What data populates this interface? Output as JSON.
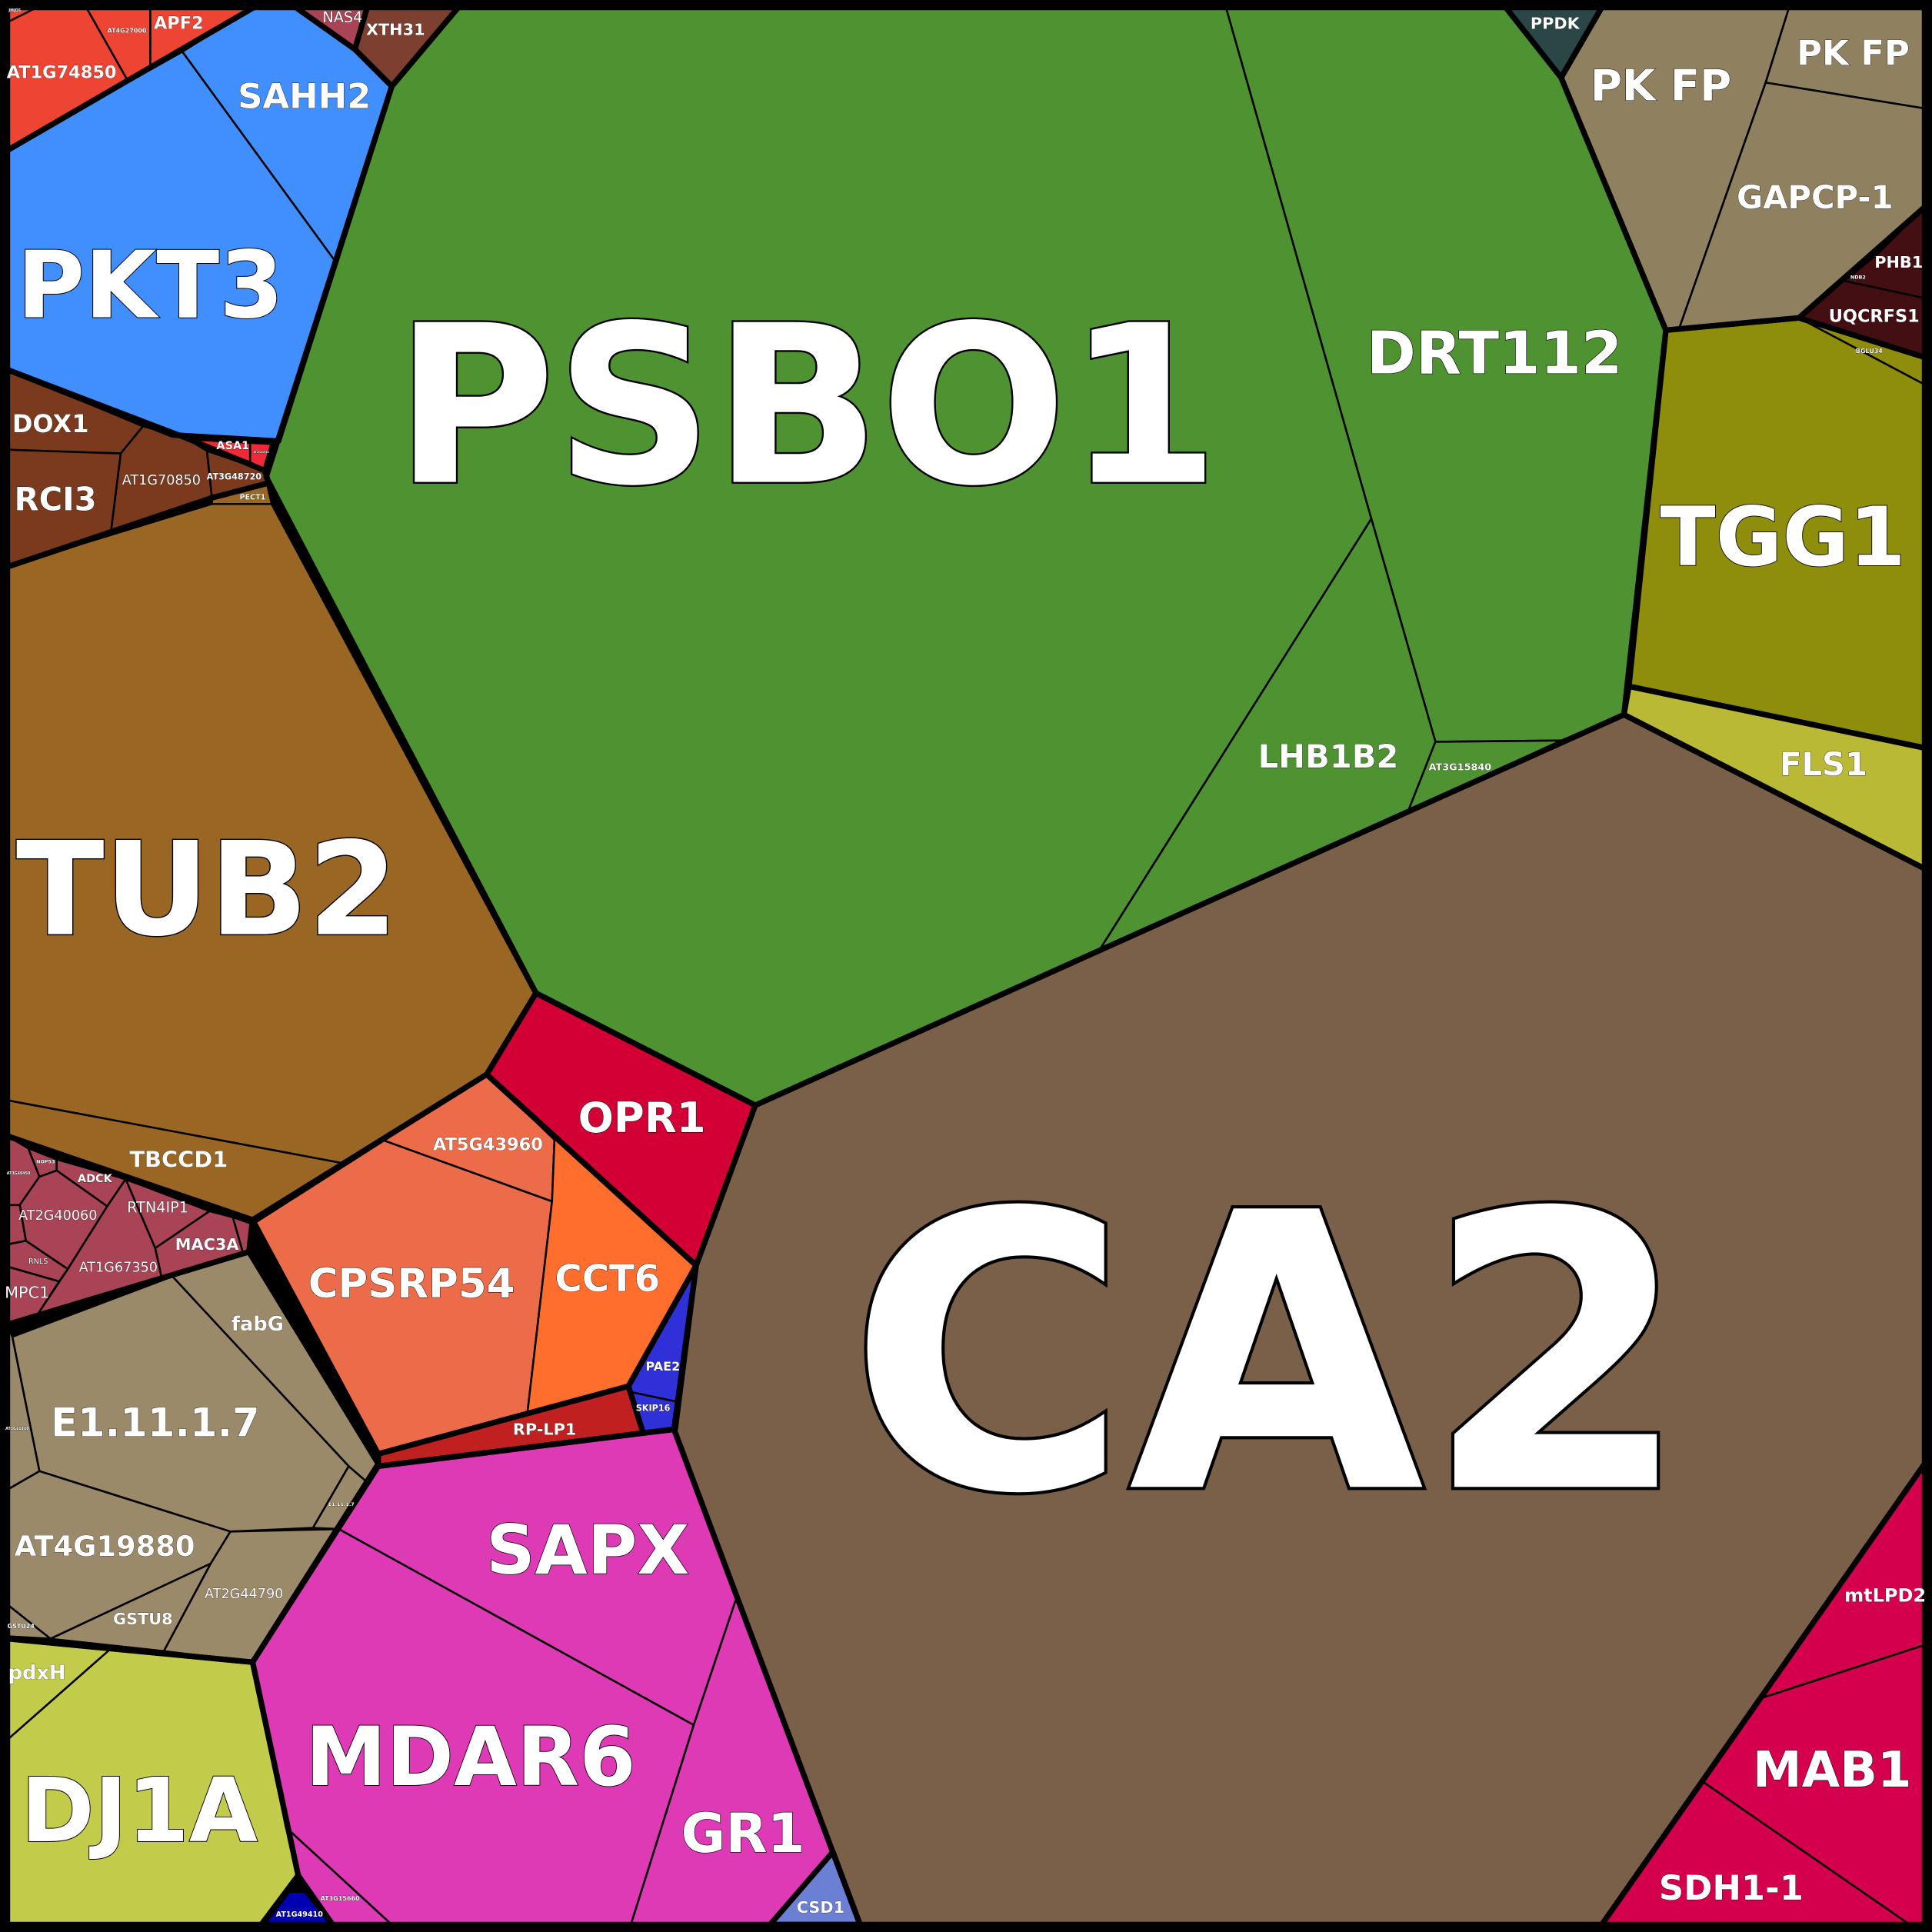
{
  "cells": {
    "psbo1": {
      "label": "PSBO1",
      "color": "#4f9232"
    },
    "drt112": {
      "label": "DRT112",
      "color": "#4f9232"
    },
    "lhb1b2": {
      "label": "LHB1B2",
      "color": "#4f9232"
    },
    "at3g15840": {
      "label": "AT3G15840",
      "color": "#4f9232"
    },
    "ca2": {
      "label": "CA2",
      "color": "#7b6049"
    },
    "mtlpd2": {
      "label": "mtLPD2",
      "color": "#d4004e"
    },
    "mab1": {
      "label": "MAB1",
      "color": "#d4004e"
    },
    "sdh1": {
      "label": "SDH1-1",
      "color": "#d4004e"
    },
    "ppdk": {
      "label": "PPDK",
      "color": "#2b4646"
    },
    "pkfp1": {
      "label": "PK FP",
      "color": "#8f8160"
    },
    "pkfp2": {
      "label": "PK FP",
      "color": "#8f8160"
    },
    "gapcp1": {
      "label": "GAPCP-1",
      "color": "#8f8160"
    },
    "phb1": {
      "label": "PHB1",
      "color": "#430f12"
    },
    "ndb2": {
      "label": "NDB2",
      "color": "#430f12"
    },
    "uqcrfs1": {
      "label": "UQCRFS1",
      "color": "#430f12"
    },
    "tgg1": {
      "label": "TGG1",
      "color": "#8e8e0c"
    },
    "bglu34": {
      "label": "BGLU34",
      "color": "#8e8e0c"
    },
    "fls1": {
      "label": "FLS1",
      "color": "#b9b935"
    },
    "jmjd5": {
      "label": "JMJD5",
      "color": "#ee4433"
    },
    "at1g74850": {
      "label": "AT1G74850",
      "color": "#ee4433"
    },
    "at4g27000": {
      "label": "AT4G27000",
      "color": "#ee4433"
    },
    "apf2": {
      "label": "APF2",
      "color": "#ee4433"
    },
    "sahh2": {
      "label": "SAHH2",
      "color": "#418fff"
    },
    "pkt3": {
      "label": "PKT3",
      "color": "#418fff"
    },
    "nas4": {
      "label": "NAS4",
      "color": "#a84455"
    },
    "xth31": {
      "label": "XTH31",
      "color": "#7d4030"
    },
    "asa1": {
      "label": "ASA1",
      "color": "#ef2a38"
    },
    "asa_small": {
      "label": "AT2G41040",
      "color": "#ef2a38"
    },
    "dox1": {
      "label": "DOX1",
      "color": "#7b3a1e"
    },
    "rci3": {
      "label": "RCI3",
      "color": "#7b3a1e"
    },
    "at1g70850": {
      "label": "AT1G70850",
      "color": "#7b3a1e"
    },
    "at3g48720": {
      "label": "AT3G48720",
      "color": "#7b3a1e"
    },
    "pect1": {
      "label": "PECT1",
      "color": "#9a6623"
    },
    "tub2": {
      "label": "TUB2",
      "color": "#9a6623"
    },
    "tbccd1": {
      "label": "TBCCD1",
      "color": "#9a6623"
    },
    "at3g60450": {
      "label": "AT3G60450",
      "color": "#a84455"
    },
    "nop53": {
      "label": "NOP53",
      "color": "#a84455"
    },
    "adck": {
      "label": "ADCK",
      "color": "#a84455"
    },
    "at2g40060": {
      "label": "AT2G40060",
      "color": "#a84455"
    },
    "at1g67350": {
      "label": "AT1G67350",
      "color": "#a84455"
    },
    "rtn4ip1": {
      "label": "RTN4IP1",
      "color": "#a84455"
    },
    "mac3a": {
      "label": "MAC3A",
      "color": "#a84455"
    },
    "mauve_small": {
      "label": "",
      "color": "#a84455"
    },
    "rnls": {
      "label": "RNLS",
      "color": "#a84455"
    },
    "mpc1": {
      "label": "MPC1",
      "color": "#a84455"
    },
    "mauve_left": {
      "label": "",
      "color": "#a84455"
    },
    "fabg": {
      "label": "fabG",
      "color": "#9b8a6a"
    },
    "e11117": {
      "label": "E1.11.1.7",
      "color": "#9b8a6a"
    },
    "e11117_small": {
      "label": "E1.11.1.7",
      "color": "#9b8a6a"
    },
    "tan_left": {
      "label": "AT3G11110",
      "color": "#9b8a6a"
    },
    "at4g19880": {
      "label": "AT4G19880",
      "color": "#9b8a6a"
    },
    "gstu24": {
      "label": "GSTU24",
      "color": "#9b8a6a"
    },
    "gstu8": {
      "label": "GSTU8",
      "color": "#9b8a6a"
    },
    "at2g44790": {
      "label": "AT2G44790",
      "color": "#9b8a6a"
    },
    "pdxh": {
      "label": "pdxH",
      "color": "#c3cb4b"
    },
    "dj1a": {
      "label": "DJ1A",
      "color": "#c3cb4b"
    },
    "at1g49410": {
      "label": "AT1G49410",
      "color": "#0000b0"
    },
    "at3g15660": {
      "label": "AT3G15660",
      "color": "#de3ab5"
    },
    "sapx": {
      "label": "SAPX",
      "color": "#de3ab5"
    },
    "mdar6": {
      "label": "MDAR6",
      "color": "#de3ab5"
    },
    "gr1": {
      "label": "GR1",
      "color": "#de3ab5"
    },
    "csd1": {
      "label": "CSD1",
      "color": "#6b7fd4"
    },
    "cpsrp54": {
      "label": "CPSRP54",
      "color": "#ec6c4a"
    },
    "at5g43960": {
      "label": "AT5G43960",
      "color": "#ec6c4a"
    },
    "cct6": {
      "label": "CCT6",
      "color": "#ff6e2c"
    },
    "rplp1": {
      "label": "RP-LP1",
      "color": "#c02020"
    },
    "pae2": {
      "label": "PAE2",
      "color": "#3030d8"
    },
    "skip16": {
      "label": "SKIP16",
      "color": "#3030d8"
    },
    "opr1": {
      "label": "OPR1",
      "color": "#d20034"
    }
  }
}
